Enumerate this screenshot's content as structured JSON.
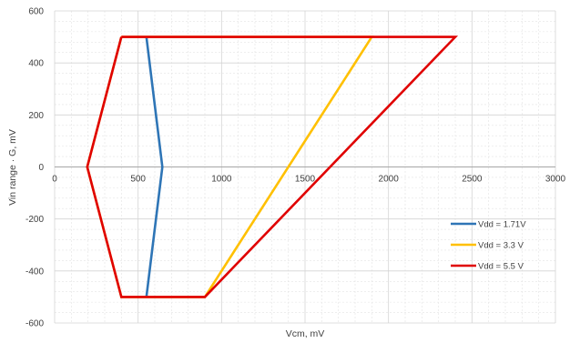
{
  "chart_data": {
    "type": "line",
    "title": "",
    "xlabel": "Vcm, mV",
    "ylabel": "Vin range · G, mV",
    "xlim": [
      0,
      3000
    ],
    "ylim": [
      -600,
      600
    ],
    "x_ticks": [
      0,
      500,
      1000,
      1500,
      2000,
      2500,
      3000
    ],
    "y_ticks": [
      600,
      400,
      200,
      0,
      -200,
      -400,
      -600
    ],
    "x_tick_labels": [
      "0",
      "500",
      "1000",
      "1500",
      "2000",
      "2500",
      "3000"
    ],
    "y_tick_labels": [
      "600",
      "400",
      "200",
      "0",
      "-200",
      "-400",
      "-600"
    ],
    "grid": true,
    "legend_position": "bottom-right",
    "series": [
      {
        "name": "Vdd = 1.71V",
        "color": "#2E75B6",
        "points": [
          [
            550,
            500
          ],
          [
            645,
            0
          ],
          [
            550,
            -500
          ]
        ]
      },
      {
        "name": "Vdd = 3.3 V",
        "color": "#FFC000",
        "points": [
          [
            400,
            500
          ],
          [
            1900,
            500
          ],
          [
            900,
            -500
          ],
          [
            400,
            -500
          ],
          [
            195,
            0
          ],
          [
            400,
            500
          ]
        ]
      },
      {
        "name": "Vdd = 5.5 V",
        "color": "#E00000",
        "points": [
          [
            400,
            500
          ],
          [
            2400,
            500
          ],
          [
            900,
            -500
          ],
          [
            400,
            -500
          ],
          [
            195,
            0
          ],
          [
            400,
            500
          ]
        ]
      }
    ]
  }
}
